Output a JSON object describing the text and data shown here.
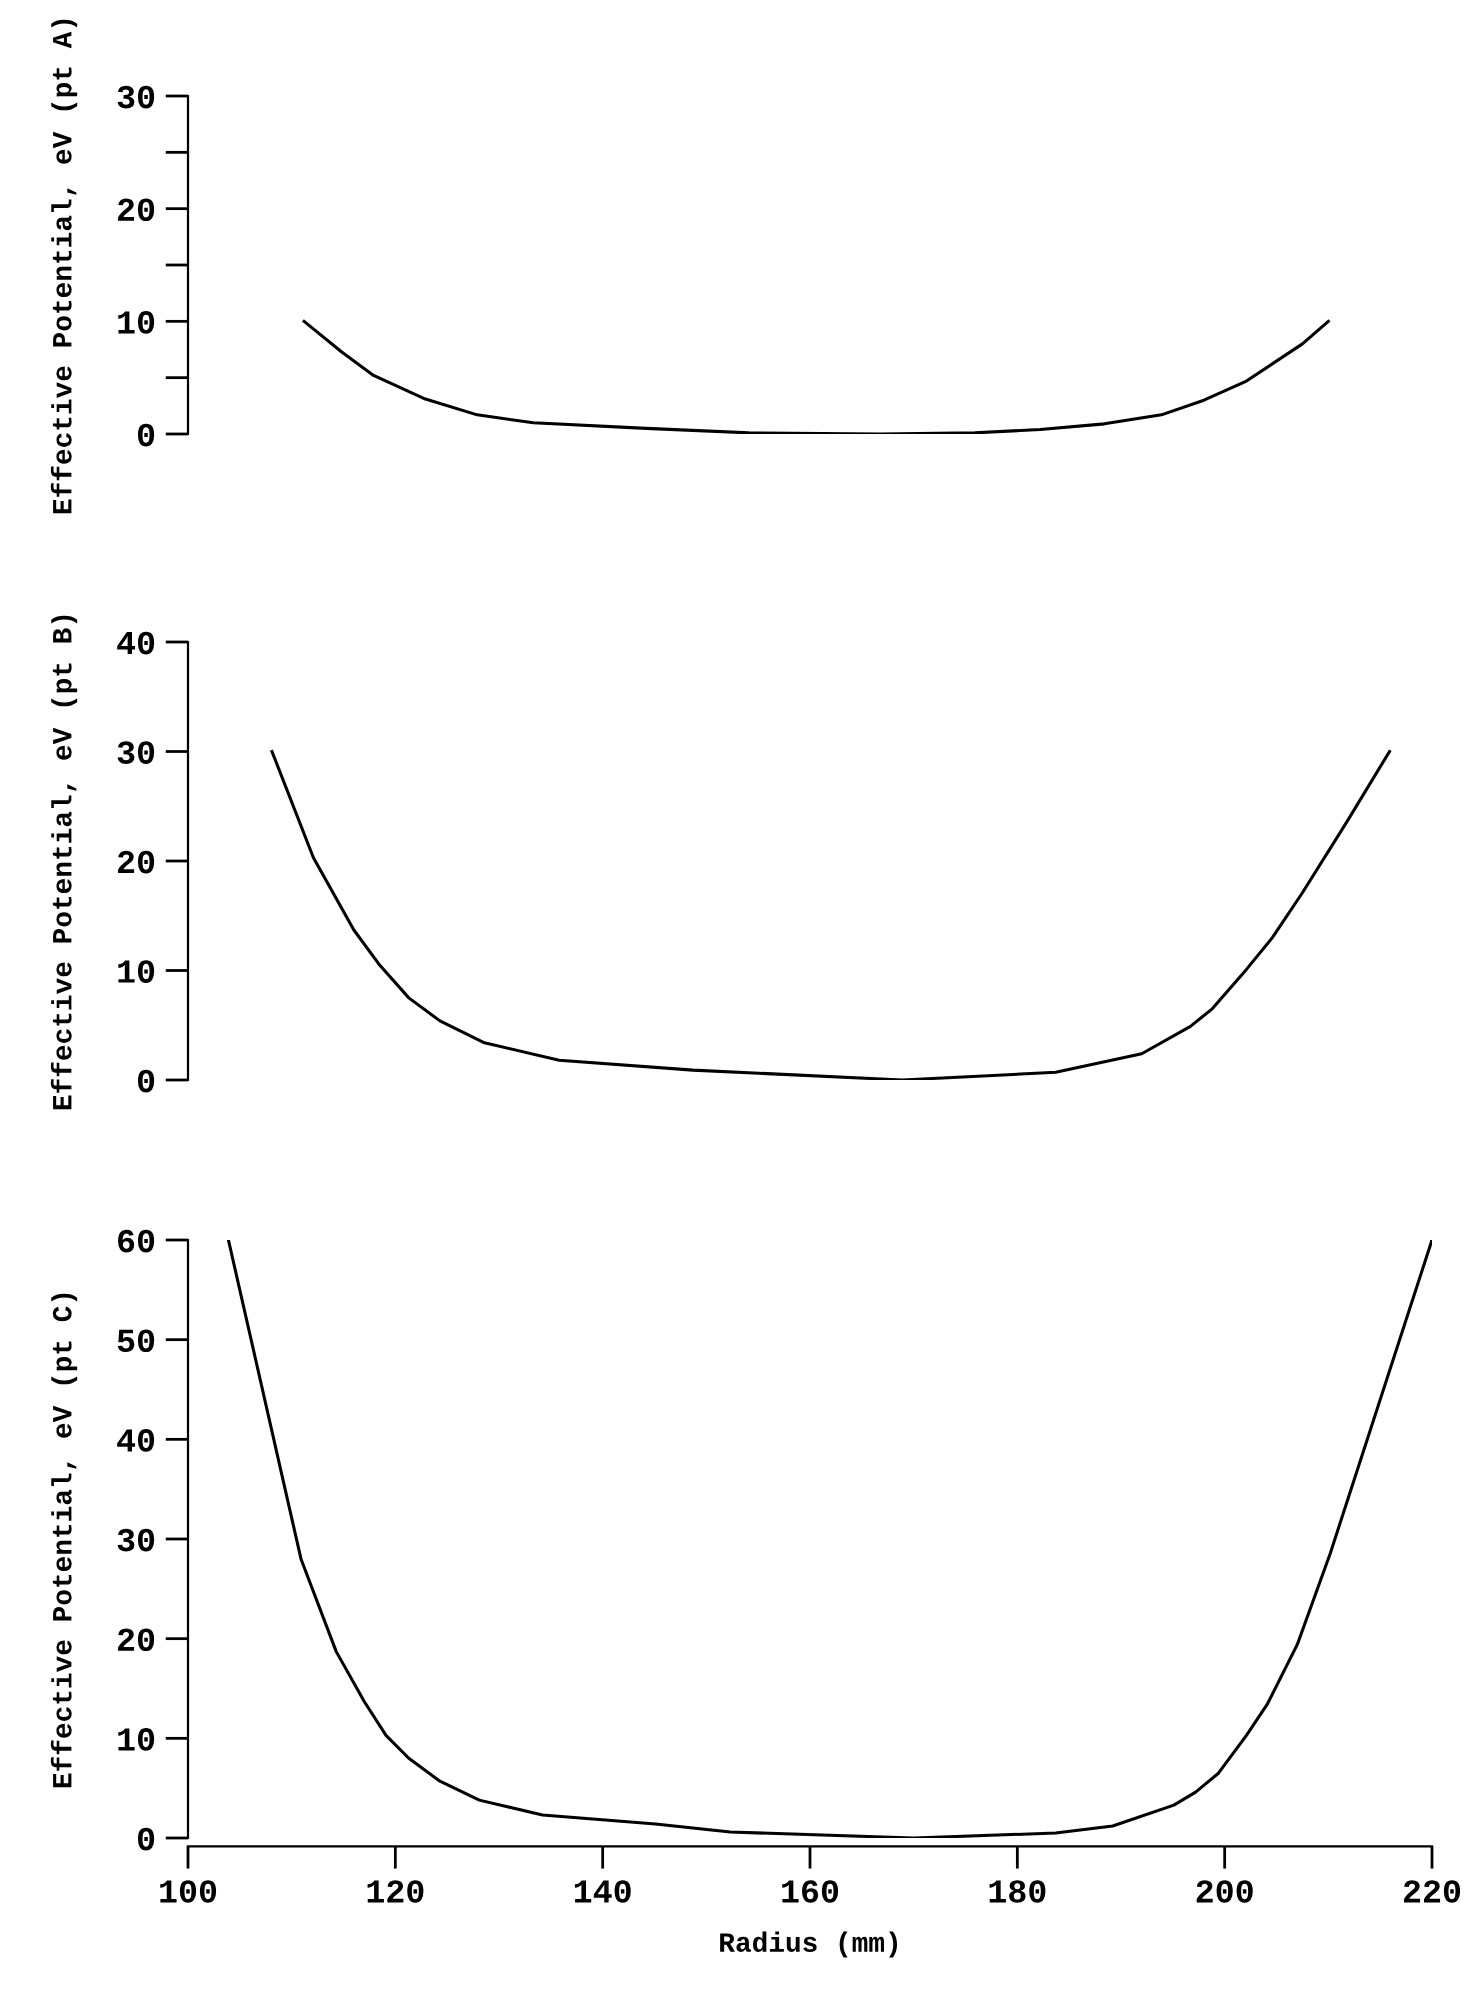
{
  "chart_data": [
    {
      "type": "line",
      "ylabel": "Effective Potential, eV (pt A)",
      "xlim": [
        100,
        220
      ],
      "ylim": [
        0,
        30
      ],
      "yticks": [
        0,
        {
          "value": 5,
          "label": null
        },
        10,
        {
          "value": 15,
          "label": null
        },
        20,
        {
          "value": 25,
          "label": null
        },
        30
      ],
      "tick_labels": "y",
      "grid": false,
      "legend": false,
      "series": [
        {
          "color": "#000000",
          "x": [
            111.2,
            114.8,
            117.9,
            122.9,
            127.9,
            133.3,
            144.2,
            154.1,
            166.8,
            175.9,
            182.2,
            188.4,
            193.9,
            198.0,
            202.1,
            207.5,
            210.0
          ],
          "values": [
            10,
            7.3,
            5.2,
            3.1,
            1.7,
            1.0,
            0.5,
            0.1,
            0,
            0.1,
            0.4,
            0.9,
            1.7,
            3.0,
            4.7,
            8.0,
            10
          ]
        }
      ]
    },
    {
      "type": "line",
      "ylabel": "Effective Potential, eV (pt B)",
      "xlim": [
        100,
        220
      ],
      "ylim": [
        0,
        40
      ],
      "yticks": [
        0,
        10,
        20,
        30,
        40
      ],
      "tick_labels": "y",
      "grid": false,
      "legend": false,
      "series": [
        {
          "color": "#000000",
          "x": [
            108.1,
            112.1,
            116.0,
            118.4,
            121.3,
            124.3,
            128.6,
            135.8,
            148.7,
            168.9,
            183.7,
            192.0,
            196.7,
            198.8,
            202.1,
            204.6,
            207.5,
            211.8,
            215.9
          ],
          "values": [
            30,
            20.3,
            13.7,
            10.6,
            7.5,
            5.4,
            3.4,
            1.8,
            0.9,
            0,
            0.7,
            2.4,
            4.9,
            6.5,
            10.1,
            13.0,
            17.1,
            23.6,
            30
          ]
        }
      ]
    },
    {
      "type": "line",
      "xlabel": "Radius (mm)",
      "ylabel": "Effective Potential, eV (pt C)",
      "xlim": [
        100,
        220
      ],
      "ylim": [
        0,
        60
      ],
      "xticks": [
        100,
        120,
        140,
        160,
        180,
        200,
        220
      ],
      "yticks": [
        0,
        10,
        20,
        30,
        40,
        50,
        60
      ],
      "grid": false,
      "legend": false,
      "series": [
        {
          "color": "#000000",
          "x": [
            103.9,
            110.9,
            114.3,
            117.0,
            119.1,
            121.3,
            124.3,
            128.1,
            134.2,
            145.1,
            152.3,
            170.0,
            183.7,
            189.2,
            195.1,
            197.2,
            199.4,
            202.1,
            204.1,
            207.0,
            210.2,
            220.0
          ],
          "values": [
            60,
            28.0,
            18.7,
            13.7,
            10.3,
            8.0,
            5.7,
            3.8,
            2.3,
            1.4,
            0.6,
            0,
            0.5,
            1.2,
            3.3,
            4.6,
            6.5,
            10.3,
            13.4,
            19.4,
            28.6,
            60
          ]
        }
      ]
    }
  ]
}
